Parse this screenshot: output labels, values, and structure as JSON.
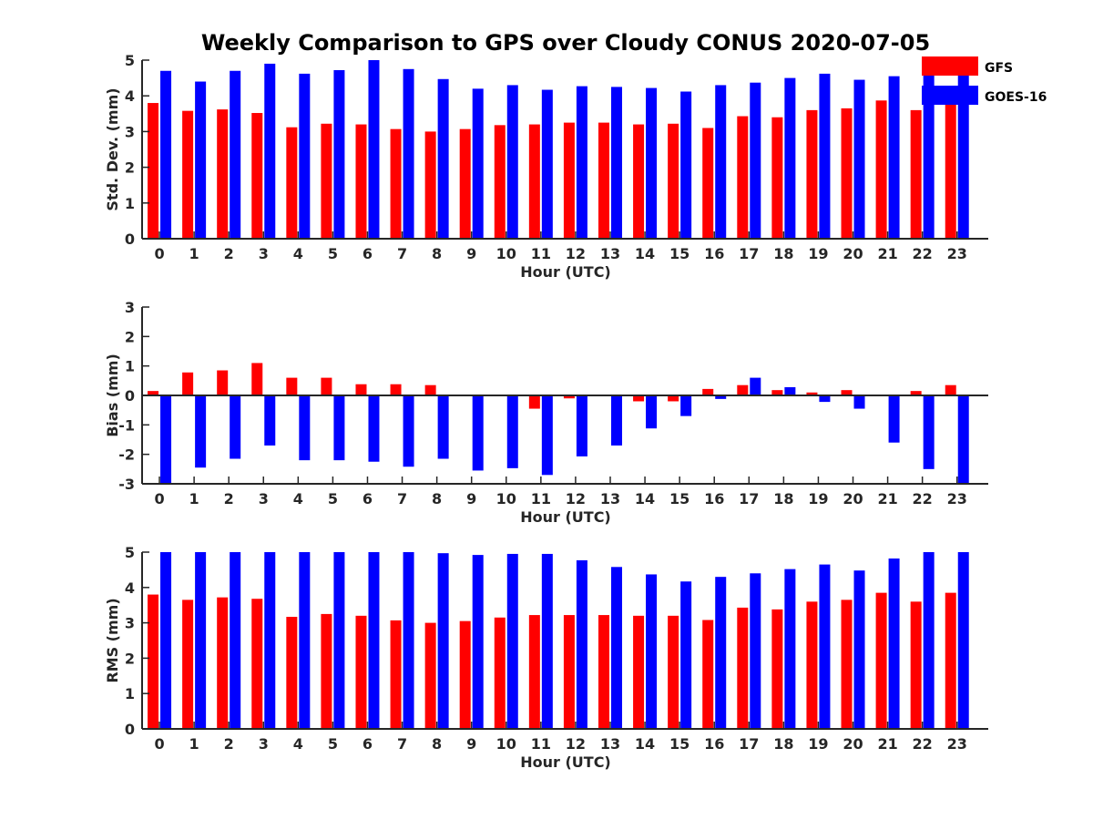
{
  "figure": {
    "title": "Weekly Comparison to GPS over Cloudy CONUS 2020-07-05"
  },
  "legend": {
    "placement": "top-right",
    "entries": [
      {
        "label": "GFS",
        "color": "#ff0000"
      },
      {
        "label": "GOES-16",
        "color": "#0000ff"
      }
    ]
  },
  "chart_data": [
    {
      "type": "bar",
      "xlabel": "Hour (UTC)",
      "ylabel": "Std. Dev. (mm)",
      "ylim": [
        0,
        5
      ],
      "yticks": [
        0,
        1,
        2,
        3,
        4,
        5
      ],
      "categories": [
        "0",
        "1",
        "2",
        "3",
        "4",
        "5",
        "6",
        "7",
        "8",
        "9",
        "10",
        "11",
        "12",
        "13",
        "14",
        "15",
        "16",
        "17",
        "18",
        "19",
        "20",
        "21",
        "22",
        "23"
      ],
      "series": [
        {
          "name": "GFS",
          "color": "#ff0000",
          "values": [
            3.8,
            3.58,
            3.62,
            3.52,
            3.12,
            3.22,
            3.2,
            3.07,
            3.0,
            3.07,
            3.18,
            3.2,
            3.25,
            3.25,
            3.2,
            3.22,
            3.1,
            3.43,
            3.4,
            3.6,
            3.65,
            3.87,
            3.6,
            3.85
          ]
        },
        {
          "name": "GOES-16",
          "color": "#0000ff",
          "values": [
            4.7,
            4.4,
            4.7,
            4.9,
            4.62,
            4.72,
            5.0,
            4.75,
            4.47,
            4.2,
            4.3,
            4.17,
            4.27,
            4.25,
            4.22,
            4.12,
            4.3,
            4.37,
            4.5,
            4.62,
            4.45,
            4.55,
            4.6,
            4.65
          ]
        }
      ]
    },
    {
      "type": "bar",
      "xlabel": "Hour (UTC)",
      "ylabel": "Bias (mm)",
      "ylim": [
        -3,
        3
      ],
      "yticks": [
        -3,
        -2,
        -1,
        0,
        1,
        2,
        3
      ],
      "categories": [
        "0",
        "1",
        "2",
        "3",
        "4",
        "5",
        "6",
        "7",
        "8",
        "9",
        "10",
        "11",
        "12",
        "13",
        "14",
        "15",
        "16",
        "17",
        "18",
        "19",
        "20",
        "21",
        "22",
        "23"
      ],
      "series": [
        {
          "name": "GFS",
          "color": "#ff0000",
          "values": [
            0.15,
            0.78,
            0.85,
            1.1,
            0.6,
            0.6,
            0.38,
            0.38,
            0.35,
            0.03,
            0.0,
            -0.45,
            -0.1,
            0.02,
            -0.2,
            -0.2,
            0.22,
            0.35,
            0.18,
            0.1,
            0.18,
            0.0,
            0.15,
            0.35
          ]
        },
        {
          "name": "GOES-16",
          "color": "#0000ff",
          "values": [
            -3.0,
            -2.45,
            -2.15,
            -1.7,
            -2.2,
            -2.2,
            -2.25,
            -2.42,
            -2.15,
            -2.55,
            -2.47,
            -2.7,
            -2.07,
            -1.7,
            -1.12,
            -0.7,
            -0.12,
            0.6,
            0.28,
            -0.22,
            -0.45,
            -1.6,
            -2.5,
            -3.0
          ]
        }
      ]
    },
    {
      "type": "bar",
      "xlabel": "Hour (UTC)",
      "ylabel": "RMS (mm)",
      "ylim": [
        0,
        5
      ],
      "yticks": [
        0,
        1,
        2,
        3,
        4,
        5
      ],
      "categories": [
        "0",
        "1",
        "2",
        "3",
        "4",
        "5",
        "6",
        "7",
        "8",
        "9",
        "10",
        "11",
        "12",
        "13",
        "14",
        "15",
        "16",
        "17",
        "18",
        "19",
        "20",
        "21",
        "22",
        "23"
      ],
      "series": [
        {
          "name": "GFS",
          "color": "#ff0000",
          "values": [
            3.8,
            3.65,
            3.72,
            3.68,
            3.17,
            3.25,
            3.2,
            3.07,
            3.0,
            3.05,
            3.15,
            3.22,
            3.22,
            3.22,
            3.2,
            3.2,
            3.08,
            3.43,
            3.38,
            3.6,
            3.65,
            3.85,
            3.6,
            3.85
          ]
        },
        {
          "name": "GOES-16",
          "color": "#0000ff",
          "values": [
            5.0,
            5.0,
            5.0,
            5.0,
            5.0,
            5.0,
            5.0,
            5.0,
            4.97,
            4.92,
            4.95,
            4.95,
            4.77,
            4.58,
            4.37,
            4.17,
            4.3,
            4.4,
            4.52,
            4.65,
            4.48,
            4.82,
            5.0,
            5.0
          ]
        }
      ]
    }
  ]
}
